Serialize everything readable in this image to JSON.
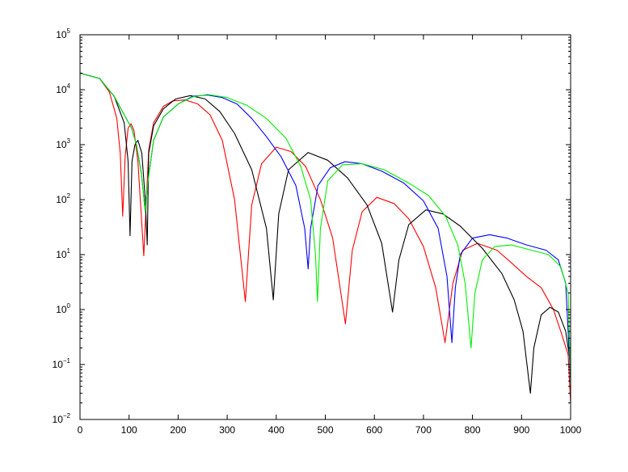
{
  "chart_data": {
    "type": "line",
    "title": "",
    "xlabel": "",
    "ylabel": "",
    "xlim": [
      0,
      1000
    ],
    "ylim": [
      0.01,
      100000
    ],
    "yscale": "log",
    "grid": false,
    "x_ticks": [
      "0",
      "100",
      "200",
      "300",
      "400",
      "500",
      "600",
      "700",
      "800",
      "900",
      "1000"
    ],
    "y_ticks": [
      {
        "value": 0.01,
        "base": "10",
        "exp": "−2"
      },
      {
        "value": 0.1,
        "base": "10",
        "exp": "−1"
      },
      {
        "value": 1,
        "base": "10",
        "exp": "0"
      },
      {
        "value": 10,
        "base": "10",
        "exp": "1"
      },
      {
        "value": 100,
        "base": "10",
        "exp": "2"
      },
      {
        "value": 1000,
        "base": "10",
        "exp": "3"
      },
      {
        "value": 10000,
        "base": "10",
        "exp": "4"
      },
      {
        "value": 100000,
        "base": "10",
        "exp": "5"
      }
    ],
    "series": [
      {
        "color": "#ff0000",
        "points": [
          [
            0,
            20000
          ],
          [
            40,
            16000
          ],
          [
            60,
            9000
          ],
          [
            75,
            3000
          ],
          [
            82,
            700
          ],
          [
            87,
            50
          ],
          [
            92,
            600
          ],
          [
            98,
            2000
          ],
          [
            104,
            2400
          ],
          [
            110,
            1800
          ],
          [
            118,
            500
          ],
          [
            130,
            9.5
          ],
          [
            140,
            800
          ],
          [
            150,
            2500
          ],
          [
            170,
            5000
          ],
          [
            190,
            6300
          ],
          [
            215,
            6500
          ],
          [
            240,
            5500
          ],
          [
            265,
            3500
          ],
          [
            290,
            1200
          ],
          [
            315,
            100
          ],
          [
            337,
            1.4
          ],
          [
            350,
            80
          ],
          [
            370,
            450
          ],
          [
            400,
            900
          ],
          [
            430,
            750
          ],
          [
            460,
            400
          ],
          [
            490,
            100
          ],
          [
            515,
            20
          ],
          [
            541,
            0.55
          ],
          [
            555,
            12
          ],
          [
            575,
            60
          ],
          [
            605,
            110
          ],
          [
            640,
            85
          ],
          [
            670,
            45
          ],
          [
            700,
            14
          ],
          [
            725,
            2.5
          ],
          [
            744,
            0.25
          ],
          [
            760,
            3
          ],
          [
            780,
            12
          ],
          [
            810,
            16
          ],
          [
            850,
            12
          ],
          [
            880,
            7
          ],
          [
            910,
            4
          ],
          [
            940,
            2.5
          ],
          [
            965,
            1
          ],
          [
            980,
            0.4
          ],
          [
            995,
            0.15
          ],
          [
            1000,
            0.02
          ]
        ]
      },
      {
        "color": "#000000",
        "points": [
          [
            0,
            20000
          ],
          [
            40,
            16000
          ],
          [
            70,
            7500
          ],
          [
            90,
            2500
          ],
          [
            98,
            500
          ],
          [
            102,
            22
          ],
          [
            106,
            500
          ],
          [
            112,
            1000
          ],
          [
            118,
            1200
          ],
          [
            126,
            700
          ],
          [
            133,
            100
          ],
          [
            137,
            15
          ],
          [
            140,
            700
          ],
          [
            150,
            2200
          ],
          [
            170,
            4500
          ],
          [
            195,
            6800
          ],
          [
            225,
            7800
          ],
          [
            255,
            6800
          ],
          [
            285,
            4000
          ],
          [
            315,
            1600
          ],
          [
            350,
            350
          ],
          [
            380,
            30
          ],
          [
            394,
            1.5
          ],
          [
            405,
            55
          ],
          [
            425,
            350
          ],
          [
            465,
            720
          ],
          [
            505,
            520
          ],
          [
            545,
            250
          ],
          [
            585,
            80
          ],
          [
            615,
            16
          ],
          [
            637,
            0.9
          ],
          [
            650,
            8
          ],
          [
            670,
            35
          ],
          [
            705,
            65
          ],
          [
            740,
            55
          ],
          [
            775,
            33
          ],
          [
            820,
            13
          ],
          [
            860,
            4.5
          ],
          [
            885,
            1.5
          ],
          [
            903,
            0.4
          ],
          [
            918,
            0.03
          ],
          [
            925,
            0.2
          ],
          [
            940,
            0.8
          ],
          [
            958,
            1.1
          ],
          [
            975,
            0.9
          ],
          [
            990,
            0.4
          ],
          [
            1000,
            0.1
          ]
        ]
      },
      {
        "color": "#0000ff",
        "points": [
          [
            0,
            20000
          ],
          [
            40,
            16000
          ],
          [
            70,
            7500
          ],
          [
            90,
            3500
          ],
          [
            105,
            2000
          ],
          [
            115,
            1000
          ],
          [
            125,
            300
          ],
          [
            133,
            60
          ],
          [
            138,
            200
          ],
          [
            150,
            1200
          ],
          [
            170,
            3200
          ],
          [
            200,
            5500
          ],
          [
            230,
            7600
          ],
          [
            260,
            8000
          ],
          [
            290,
            7200
          ],
          [
            320,
            5500
          ],
          [
            350,
            3000
          ],
          [
            380,
            1400
          ],
          [
            410,
            600
          ],
          [
            440,
            180
          ],
          [
            458,
            30
          ],
          [
            465,
            5.5
          ],
          [
            470,
            30
          ],
          [
            485,
            180
          ],
          [
            510,
            380
          ],
          [
            540,
            490
          ],
          [
            575,
            450
          ],
          [
            615,
            330
          ],
          [
            660,
            200
          ],
          [
            700,
            95
          ],
          [
            730,
            30
          ],
          [
            748,
            4
          ],
          [
            758,
            0.25
          ],
          [
            765,
            2.5
          ],
          [
            775,
            10
          ],
          [
            800,
            20
          ],
          [
            835,
            23
          ],
          [
            870,
            20
          ],
          [
            910,
            15
          ],
          [
            950,
            12
          ],
          [
            975,
            8
          ],
          [
            990,
            3
          ],
          [
            1000,
            0.05
          ]
        ]
      },
      {
        "color": "#00ee00",
        "points": [
          [
            0,
            20000
          ],
          [
            40,
            16000
          ],
          [
            70,
            7500
          ],
          [
            90,
            3500
          ],
          [
            105,
            2000
          ],
          [
            115,
            1000
          ],
          [
            125,
            300
          ],
          [
            133,
            60
          ],
          [
            138,
            200
          ],
          [
            150,
            1200
          ],
          [
            170,
            3200
          ],
          [
            200,
            5500
          ],
          [
            230,
            7400
          ],
          [
            260,
            8200
          ],
          [
            300,
            7200
          ],
          [
            340,
            5200
          ],
          [
            380,
            3000
          ],
          [
            420,
            1300
          ],
          [
            450,
            400
          ],
          [
            470,
            100
          ],
          [
            480,
            10
          ],
          [
            484,
            1.4
          ],
          [
            490,
            30
          ],
          [
            505,
            220
          ],
          [
            535,
            430
          ],
          [
            575,
            450
          ],
          [
            620,
            350
          ],
          [
            670,
            200
          ],
          [
            710,
            120
          ],
          [
            745,
            50
          ],
          [
            770,
            15
          ],
          [
            785,
            3
          ],
          [
            797,
            0.2
          ],
          [
            805,
            2
          ],
          [
            820,
            8
          ],
          [
            845,
            14
          ],
          [
            880,
            15
          ],
          [
            920,
            12
          ],
          [
            955,
            10
          ],
          [
            980,
            6
          ],
          [
            995,
            2
          ],
          [
            1000,
            0.05
          ]
        ]
      }
    ]
  }
}
